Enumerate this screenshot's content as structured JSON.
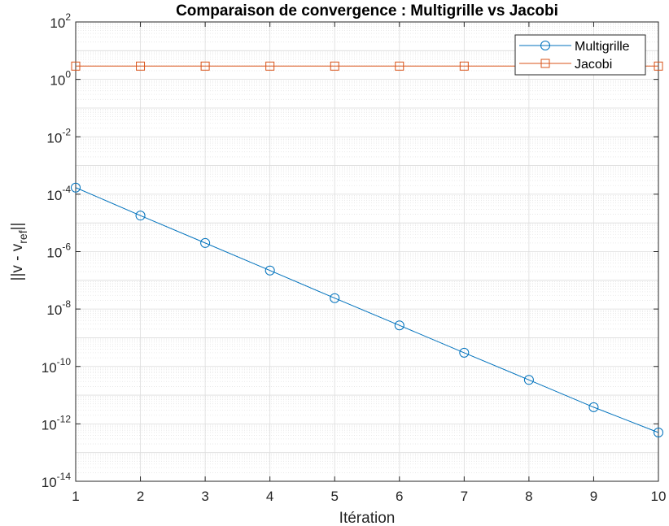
{
  "chart_data": {
    "type": "line",
    "title": "Comparaison de convergence : Multigrille vs Jacobi",
    "xlabel": "Itération",
    "ylabel": {
      "main": "||v - v",
      "sub": "ref",
      "end": "||"
    },
    "xlim": [
      1,
      10
    ],
    "ylim": [
      1e-14,
      100
    ],
    "yscale": "log",
    "grid": true,
    "minor_grid": true,
    "x_ticks": [
      "1",
      "2",
      "3",
      "4",
      "5",
      "6",
      "7",
      "8",
      "9",
      "10"
    ],
    "y_ticks": [
      {
        "base": "10",
        "exp": "2"
      },
      {
        "base": "10",
        "exp": "0"
      },
      {
        "base": "10",
        "exp": "-2"
      },
      {
        "base": "10",
        "exp": "-4"
      },
      {
        "base": "10",
        "exp": "-6"
      },
      {
        "base": "10",
        "exp": "-8"
      },
      {
        "base": "10",
        "exp": "-10"
      },
      {
        "base": "10",
        "exp": "-12"
      },
      {
        "base": "10",
        "exp": "-14"
      }
    ],
    "legend_position": "top-right",
    "series": [
      {
        "name": "Multigrille",
        "color": "#0072BD",
        "marker": "circle",
        "x": [
          1,
          2,
          3,
          4,
          5,
          6,
          7,
          8,
          9,
          10
        ],
        "y": [
          0.00017,
          1.8e-05,
          2e-06,
          2.2e-07,
          2.4e-08,
          2.7e-09,
          3e-10,
          3.4e-11,
          3.8e-12,
          5e-13
        ]
      },
      {
        "name": "Jacobi",
        "color": "#D95319",
        "marker": "square",
        "x": [
          1,
          2,
          3,
          4,
          5,
          6,
          7,
          8,
          9,
          10
        ],
        "y": [
          2.9,
          2.9,
          2.9,
          2.9,
          2.9,
          2.9,
          2.9,
          2.9,
          2.9,
          2.9
        ]
      }
    ]
  }
}
